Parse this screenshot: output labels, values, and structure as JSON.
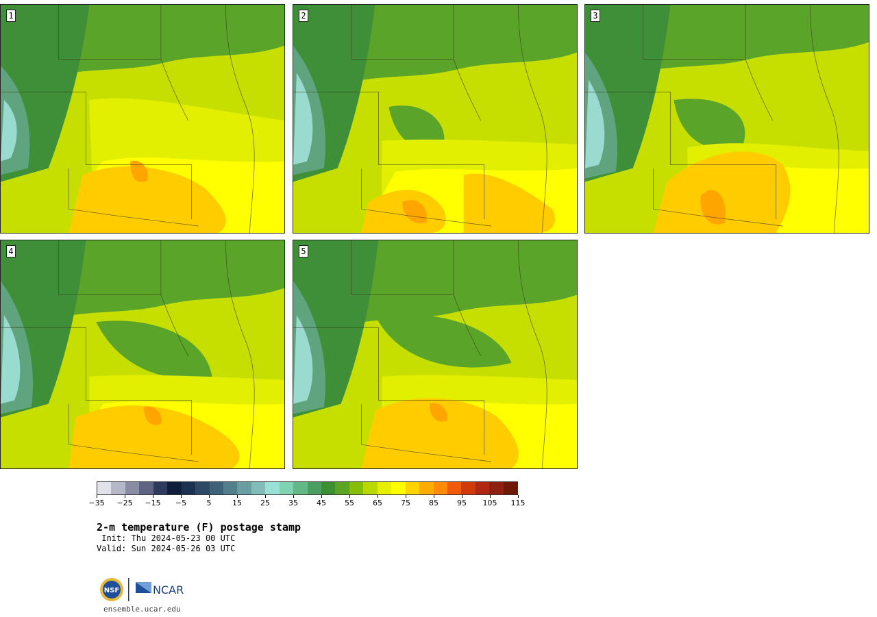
{
  "panels": [
    {
      "label": "1"
    },
    {
      "label": "2"
    },
    {
      "label": "3"
    },
    {
      "label": "4"
    },
    {
      "label": "5"
    }
  ],
  "colorbar": {
    "colors": [
      "#e2e2ea",
      "#b6b7c8",
      "#8a8ca4",
      "#5e6482",
      "#2f3b5c",
      "#0f1e3a",
      "#1c3150",
      "#2d4966",
      "#3f6278",
      "#537f8b",
      "#6a9da2",
      "#82bcb9",
      "#9be0d5",
      "#7fd2b2",
      "#64b888",
      "#4a9e60",
      "#3c9032",
      "#5aa524",
      "#86bd0a",
      "#b8d800",
      "#e6ef00",
      "#ffff00",
      "#ffd200",
      "#ffac00",
      "#ff8a0a",
      "#f05a0a",
      "#d03a0a",
      "#b02810",
      "#8e2010",
      "#6e1808"
    ],
    "ticks": [
      "−35",
      "−25",
      "−15",
      "−5",
      "5",
      "15",
      "25",
      "35",
      "45",
      "55",
      "65",
      "75",
      "85",
      "95",
      "105",
      "115"
    ]
  },
  "title": "2-m temperature (F) postage stamp",
  "init": " Init: Thu 2024-05-23 00 UTC",
  "valid": "Valid: Sun 2024-05-26 03 UTC",
  "logos": {
    "nsf": "NSF",
    "ncar": "NCAR"
  },
  "site": "ensemble.ucar.edu"
}
